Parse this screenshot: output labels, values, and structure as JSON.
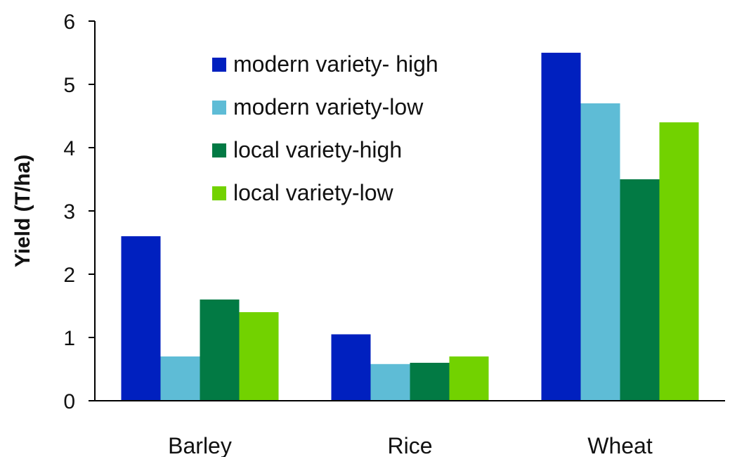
{
  "chart_data": {
    "type": "bar",
    "title": "",
    "xlabel": "",
    "ylabel": "Yield (T/ha)",
    "ylim": [
      0,
      6
    ],
    "yticks": [
      0,
      1,
      2,
      3,
      4,
      5,
      6
    ],
    "grid": false,
    "legend_position": "top-left",
    "categories": [
      "Barley",
      "Rice",
      "Wheat"
    ],
    "series": [
      {
        "name": "modern variety- high",
        "color": "#0020BF",
        "values": [
          2.6,
          1.05,
          5.5
        ]
      },
      {
        "name": "modern variety-low",
        "color": "#5EBCD6",
        "values": [
          0.7,
          0.58,
          4.7
        ]
      },
      {
        "name": "local variety-high",
        "color": "#027A44",
        "values": [
          1.6,
          0.6,
          3.5
        ]
      },
      {
        "name": "local variety-low",
        "color": "#72D200",
        "values": [
          1.4,
          0.7,
          4.4
        ]
      }
    ]
  }
}
